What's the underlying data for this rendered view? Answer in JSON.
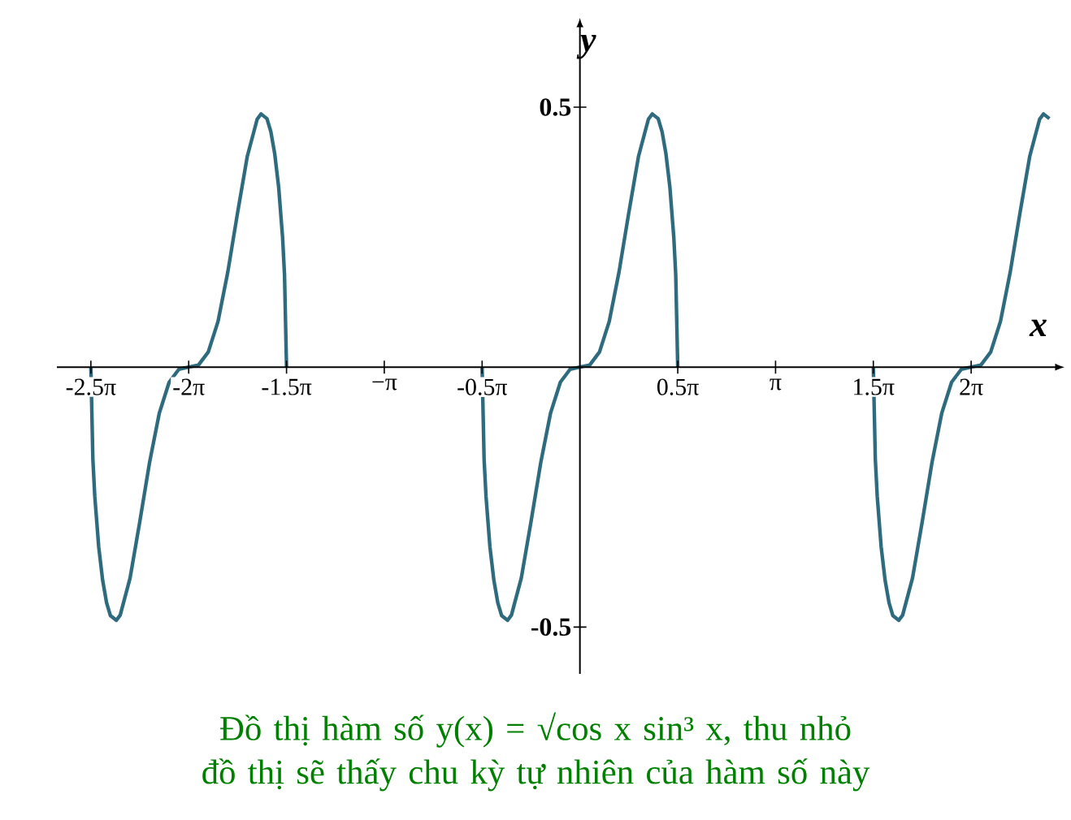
{
  "chart_data": {
    "type": "line",
    "xlabel": "x",
    "ylabel": "y",
    "annotations": [
      "Đồ thị hàm số y(x) = √cos x sin³ x, thu nhỏ đồ thị sẽ thấy chu kỳ tự nhiên của hàm số này"
    ],
    "xlim": [
      -8.4,
      7.6
    ],
    "ylim": [
      -0.59,
      0.65
    ],
    "xticks": [
      {
        "value": -7.854,
        "label": "-2.5π"
      },
      {
        "value": -6.283,
        "label": "-2π"
      },
      {
        "value": -4.712,
        "label": "-1.5π"
      },
      {
        "value": -3.142,
        "label": "−π"
      },
      {
        "value": -1.571,
        "label": "-0.5π"
      },
      {
        "value": 1.571,
        "label": "0.5π"
      },
      {
        "value": 3.142,
        "label": "π"
      },
      {
        "value": 4.712,
        "label": "1.5π"
      },
      {
        "value": 6.283,
        "label": "2π"
      }
    ],
    "yticks": [
      -0.5,
      0.5
    ],
    "series": [
      {
        "color": "#2f6b7f",
        "x": [
          -7.854,
          -7.822,
          -7.791,
          -7.728,
          -7.665,
          -7.602,
          -7.54,
          -7.445,
          -7.383,
          -7.225,
          -7.068,
          -6.911,
          -6.754,
          -6.597,
          -6.44,
          -6.283,
          -6.126,
          -5.969,
          -5.812,
          -5.655,
          -5.498,
          -5.341,
          -5.183,
          -5.121,
          -5.026,
          -4.964,
          -4.901,
          -4.838,
          -4.775,
          -4.744,
          -4.712
        ],
        "values": [
          0,
          -0.177,
          -0.249,
          -0.346,
          -0.41,
          -0.453,
          -0.478,
          -0.487,
          -0.477,
          -0.406,
          -0.297,
          -0.183,
          -0.088,
          -0.029,
          -0.004,
          0,
          0.004,
          0.029,
          0.088,
          0.183,
          0.297,
          0.406,
          0.477,
          0.487,
          0.478,
          0.453,
          0.41,
          0.346,
          0.249,
          0.177,
          0
        ]
      },
      {
        "color": "#2f6b7f",
        "x": [
          -1.571,
          -1.539,
          -1.508,
          -1.445,
          -1.382,
          -1.319,
          -1.257,
          -1.162,
          -1.1,
          -0.942,
          -0.785,
          -0.628,
          -0.471,
          -0.314,
          -0.157,
          0,
          0.157,
          0.314,
          0.471,
          0.628,
          0.785,
          0.942,
          1.1,
          1.162,
          1.257,
          1.319,
          1.382,
          1.445,
          1.508,
          1.539,
          1.571
        ],
        "values": [
          0,
          -0.177,
          -0.249,
          -0.346,
          -0.41,
          -0.453,
          -0.478,
          -0.487,
          -0.477,
          -0.406,
          -0.297,
          -0.183,
          -0.088,
          -0.029,
          -0.004,
          0,
          0.004,
          0.029,
          0.088,
          0.183,
          0.297,
          0.406,
          0.477,
          0.487,
          0.478,
          0.453,
          0.41,
          0.346,
          0.249,
          0.177,
          0
        ]
      },
      {
        "color": "#2f6b7f",
        "x": [
          4.712,
          4.744,
          4.775,
          4.838,
          4.901,
          4.964,
          5.026,
          5.121,
          5.183,
          5.341,
          5.498,
          5.655,
          5.812,
          5.969,
          6.126,
          6.283,
          6.44,
          6.597,
          6.754,
          6.911,
          7.068,
          7.225,
          7.383,
          7.445,
          7.54
        ],
        "values": [
          0,
          -0.177,
          -0.249,
          -0.346,
          -0.41,
          -0.453,
          -0.478,
          -0.487,
          -0.477,
          -0.406,
          -0.297,
          -0.183,
          -0.088,
          -0.029,
          -0.004,
          0,
          0.004,
          0.029,
          0.088,
          0.183,
          0.297,
          0.406,
          0.477,
          0.487,
          0.478
        ]
      }
    ]
  }
}
